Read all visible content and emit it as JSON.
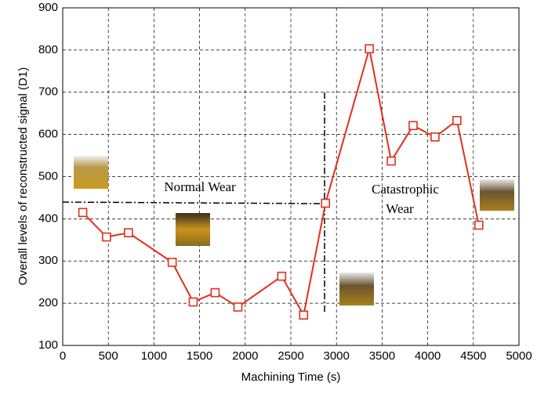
{
  "chart_data": {
    "type": "line",
    "xlabel": "Machining Time (s)",
    "ylabel": "Overall levels of reconstructed signal (D1)",
    "x": [
      220,
      480,
      720,
      1200,
      1430,
      1670,
      1920,
      2400,
      2640,
      2880,
      3360,
      3600,
      3840,
      4080,
      4320,
      4560
    ],
    "series": [
      {
        "color": "#e0301e",
        "values": [
          415,
          357,
          367,
          297,
          203,
          225,
          191,
          264,
          172,
          437,
          803,
          537,
          621,
          594,
          633,
          385
        ]
      }
    ],
    "xlim": [
      0,
      5000
    ],
    "xticks": [
      0,
      500,
      1000,
      1500,
      2000,
      2500,
      3000,
      3500,
      4000,
      4500,
      5000
    ],
    "ylim": [
      100,
      900
    ],
    "yticks": [
      100,
      200,
      300,
      400,
      500,
      600,
      700,
      800,
      900
    ],
    "grid": true,
    "annotations": [
      "Normal Wear",
      "Catastrophic",
      "Wear"
    ]
  }
}
